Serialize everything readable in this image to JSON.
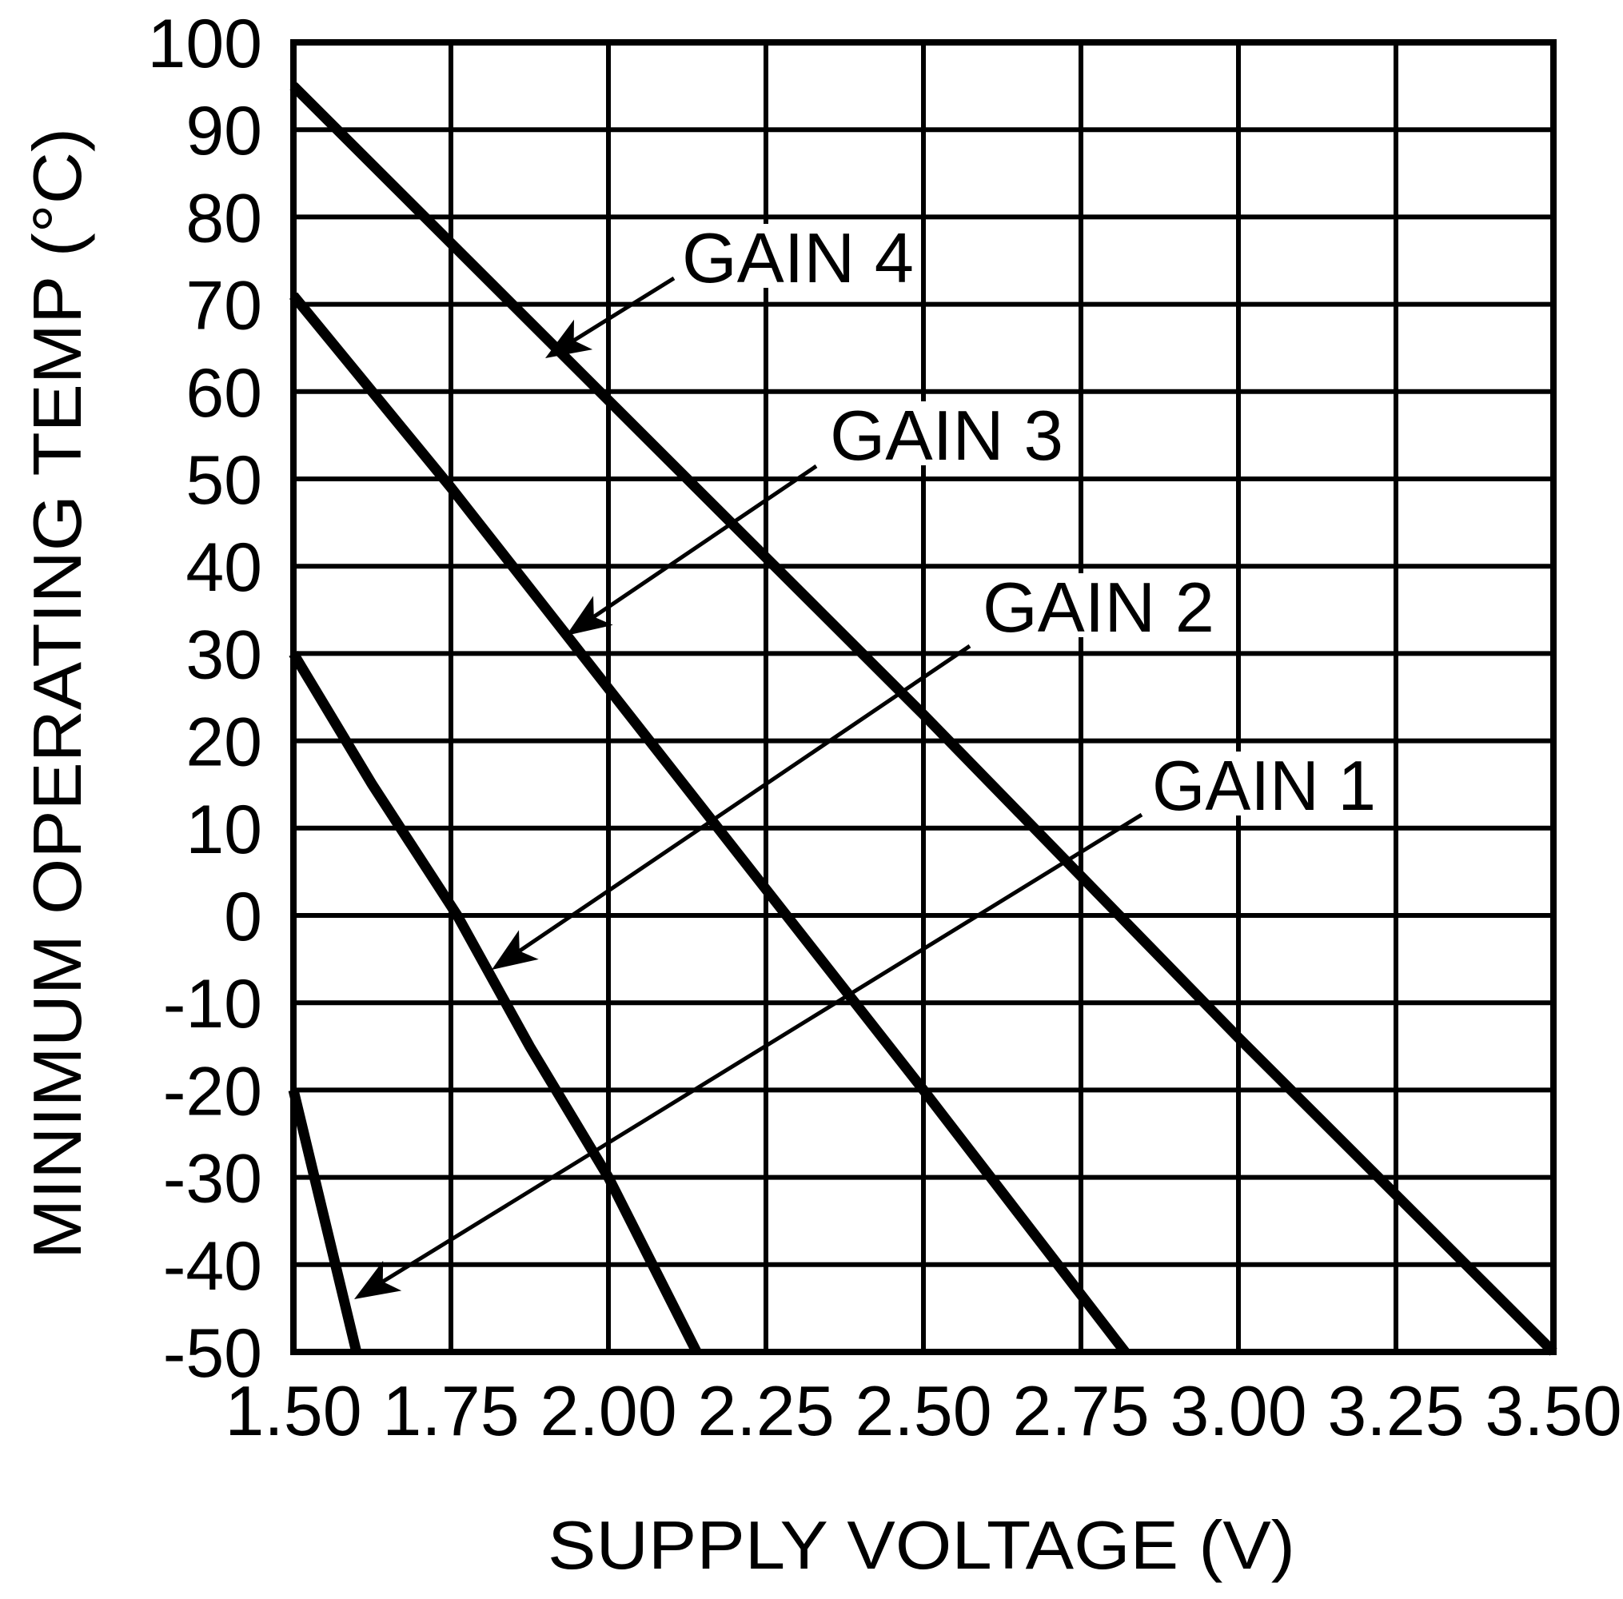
{
  "chart_data": {
    "type": "line",
    "title": "",
    "xlabel": "SUPPLY VOLTAGE (V)",
    "ylabel": "MINIMUM OPERATING TEMP (°C)",
    "xlim": [
      1.5,
      3.5
    ],
    "ylim": [
      -50,
      100
    ],
    "grid": true,
    "legend_position": "inline annotations with arrows",
    "x_ticks": [
      "1.50",
      "1.75",
      "2.00",
      "2.25",
      "2.50",
      "2.75",
      "3.00",
      "3.25",
      "3.50"
    ],
    "y_ticks": [
      "100",
      "90",
      "80",
      "70",
      "60",
      "50",
      "40",
      "30",
      "20",
      "10",
      "0",
      "-10",
      "-20",
      "-30",
      "-40",
      "-50"
    ],
    "series": [
      {
        "name": "GAIN 1",
        "x": [
          1.5,
          1.6
        ],
        "y": [
          -20,
          -50
        ]
      },
      {
        "name": "GAIN 2",
        "x": [
          1.5,
          1.625,
          1.76,
          1.875,
          2.0,
          2.14
        ],
        "y": [
          30,
          15,
          0,
          -15,
          -30,
          -50
        ]
      },
      {
        "name": "GAIN 3",
        "x": [
          1.5,
          1.75,
          2.0,
          2.25,
          2.5,
          2.82
        ],
        "y": [
          71,
          49,
          26,
          3,
          -20,
          -50
        ]
      },
      {
        "name": "GAIN 4",
        "x": [
          1.5,
          2.0,
          2.5,
          3.0,
          3.5
        ],
        "y": [
          95,
          59,
          23,
          -14,
          -50
        ]
      }
    ],
    "annotations": [
      {
        "text": "GAIN 4",
        "points_to_series": "GAIN 4"
      },
      {
        "text": "GAIN 3",
        "points_to_series": "GAIN 3"
      },
      {
        "text": "GAIN 2",
        "points_to_series": "GAIN 2"
      },
      {
        "text": "GAIN 1",
        "points_to_series": "GAIN 1"
      }
    ]
  },
  "axes": {
    "xlabel": "SUPPLY VOLTAGE (V)",
    "ylabel": "MINIMUM OPERATING TEMP (°C)"
  },
  "labels": {
    "gain4": "GAIN 4",
    "gain3": "GAIN 3",
    "gain2": "GAIN 2",
    "gain1": "GAIN 1"
  },
  "colors": {
    "line": "#000000",
    "background": "#ffffff"
  }
}
